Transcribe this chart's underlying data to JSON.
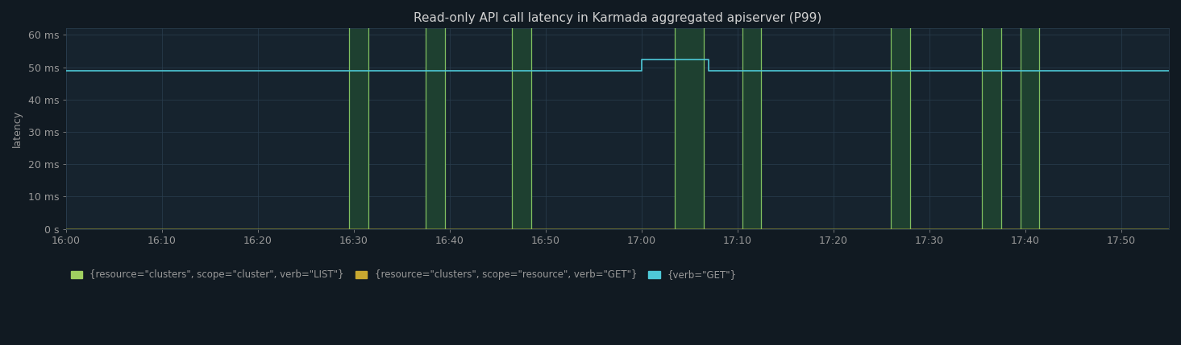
{
  "title": "Read-only API call latency in Karmada aggregated apiserver (P99)",
  "bg_color": "#111a22",
  "plot_bg_color": "#16232e",
  "grid_color": "#2a3d4f",
  "title_color": "#d0d0d0",
  "tick_color": "#999999",
  "ylabel": "latency",
  "ylim": [
    0,
    62
  ],
  "yticks": [
    0,
    10,
    20,
    30,
    40,
    50,
    60
  ],
  "ytick_labels": [
    "0 s",
    "10 ms",
    "20 ms",
    "30 ms",
    "40 ms",
    "50 ms",
    "60 ms"
  ],
  "x_start_min": 0,
  "x_end_min": 115,
  "xtick_positions_min": [
    0,
    10,
    20,
    30,
    40,
    50,
    60,
    70,
    80,
    90,
    100,
    110
  ],
  "xtick_labels": [
    "16:00",
    "16:10",
    "16:20",
    "16:30",
    "16:40",
    "16:50",
    "17:00",
    "17:10",
    "17:20",
    "17:30",
    "17:40",
    "17:50"
  ],
  "line_cyan_base": 49.0,
  "line_cyan_spike_start": 60.0,
  "line_cyan_spike_end": 67.0,
  "line_cyan_spike_value": 52.5,
  "line_cyan_color": "#4ec9d8",
  "line_green_color": "#a0d060",
  "line_yellow_color": "#c8a830",
  "green_bands": [
    {
      "start": 29.5,
      "end": 31.5
    },
    {
      "start": 37.5,
      "end": 39.5
    },
    {
      "start": 46.5,
      "end": 48.5
    },
    {
      "start": 63.5,
      "end": 66.5
    },
    {
      "start": 70.5,
      "end": 72.5
    },
    {
      "start": 86.0,
      "end": 88.0
    },
    {
      "start": 95.5,
      "end": 97.5
    },
    {
      "start": 99.5,
      "end": 101.5
    }
  ],
  "green_band_fill_color": "#1e4030",
  "green_band_border_color": "#80c060",
  "legend_labels": [
    "{resource=\"clusters\", scope=\"cluster\", verb=\"LIST\"}",
    "{resource=\"clusters\", scope=\"resource\", verb=\"GET\"}",
    "{verb=\"GET\"}"
  ],
  "legend_colors": [
    "#a0d060",
    "#c8a830",
    "#4ec9d8"
  ]
}
